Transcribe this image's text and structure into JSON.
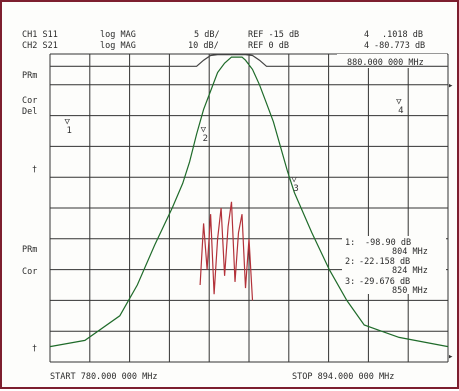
{
  "header": {
    "ch1": "CH1 S11",
    "ch2": "CH2 S21",
    "fmt1": "log MAG",
    "fmt2": "log MAG",
    "scale1": "5 dB/",
    "scale2": "10 dB/",
    "ref1": "REF -15 dB",
    "ref2": "REF 0 dB",
    "mk_num1": "4",
    "mk_val1": ".1018 dB",
    "mk_num2": "4",
    "mk_val2": "-80.773 dB",
    "mk_freq": "880.000 000 MHz"
  },
  "left_labels": {
    "prm_top": "PRm",
    "cor1": "Cor",
    "del": "Del",
    "dagger1": "†",
    "prm_bot": "PRm",
    "cor2": "Cor",
    "dagger2": "†"
  },
  "marker_table": [
    {
      "label": "1:",
      "value": "-98.90 dB",
      "freq": "804 MHz"
    },
    {
      "label": "2:",
      "value": "-22.158 dB",
      "freq": "824 MHz"
    },
    {
      "label": "3:",
      "value": "-29.676 dB",
      "freq": "850 MHz"
    }
  ],
  "footer": {
    "start": "START  780.000 000 MHz",
    "stop": "STOP  894.000 000 MHz"
  },
  "chart_data": {
    "type": "line",
    "x_range_mhz": [
      780,
      894
    ],
    "grid": {
      "divisions_x": 10,
      "divisions_y": 10
    },
    "series": [
      {
        "name": "",
        "color": "#1f6b2a",
        "x": [
          780,
          790,
          800,
          805,
          810,
          815,
          818,
          820,
          822,
          824,
          826,
          828,
          830,
          832,
          833,
          834,
          835,
          836,
          838,
          840,
          842,
          844,
          846,
          848,
          850,
          855,
          860,
          865,
          870,
          880,
          894
        ],
        "y": [
          -95,
          -93,
          -85,
          -75,
          -62,
          -50,
          -42,
          -35,
          -26,
          -18,
          -12,
          -6,
          -3,
          -1,
          -1,
          -1,
          -1,
          -2,
          -5,
          -10,
          -16,
          -22,
          -30,
          -38,
          -45,
          -58,
          -70,
          -80,
          -88,
          -92,
          -95
        ]
      },
      {
        "name": "",
        "color": "#b3323a",
        "x": [
          823,
          824,
          825,
          826,
          827,
          828,
          829,
          830,
          831,
          832,
          833,
          834,
          835,
          836,
          837,
          838
        ],
        "y": [
          -75,
          -55,
          -70,
          -52,
          -78,
          -60,
          -50,
          -72,
          -56,
          -48,
          -74,
          -58,
          -52,
          -76,
          -60,
          -80
        ]
      },
      {
        "name": "",
        "color": "#444444",
        "x": [
          780,
          822,
          824,
          826,
          828,
          830,
          832,
          834,
          836,
          838,
          840,
          842,
          894
        ],
        "y": [
          -4,
          -4,
          -2,
          -0.5,
          -0.2,
          -0.2,
          -0.2,
          -0.2,
          -0.2,
          -0.5,
          -2,
          -4,
          -4
        ]
      }
    ],
    "markers": [
      {
        "id": "1",
        "x": 785
      },
      {
        "id": "2",
        "x": 824
      },
      {
        "id": "3",
        "x": 850
      },
      {
        "id": "4",
        "x": 880
      }
    ]
  }
}
